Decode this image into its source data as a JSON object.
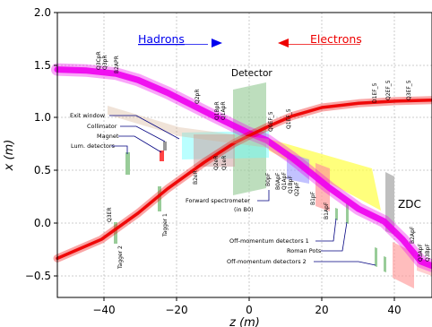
{
  "axes": {
    "xlabel": "z (m)",
    "ylabel": "x (m)",
    "xlim": [
      -52,
      50
    ],
    "ylim": [
      -0.7,
      2.0
    ],
    "xticks": [
      "−40",
      "−20",
      "0",
      "20",
      "40"
    ],
    "yticks": [
      "−0.5",
      "0.0",
      "0.5",
      "1.0",
      "1.5",
      "2.0"
    ],
    "grid": true
  },
  "legend": {
    "hadrons": "Hadrons",
    "electrons": "Electrons",
    "hadrons_color": "#0000ee",
    "electrons_color": "#ee0000"
  },
  "labels": {
    "detector": "Detector",
    "zdc": "ZDC"
  },
  "callouts": {
    "exit_window": "Exit window",
    "collimator": "Collimator",
    "magnet": "Magnet",
    "lum_detectors": "Lum. detectors",
    "forward_spectrometer_1": "Forward spectrometer",
    "forward_spectrometer_2": "(in B0)",
    "off_momentum_1": "Off-momentum detectors 1",
    "roman_pots": "Roman Pots",
    "off_momentum_2": "Off-momentum detectors 2"
  },
  "magnets": {
    "q3cpr": "Q3CpR",
    "q3pr": "Q3pR",
    "b2apr": "B2APR",
    "q2pr": "Q2pR",
    "q1bpr": "Q1BpR",
    "q1apr": "Q1ApR",
    "q0ef": "Q0EF_5",
    "q1ef": "Q1EF_5",
    "d1ef": "D1EF_5",
    "q2ef": "Q2EF_5",
    "q3ef": "Q3EF_5",
    "b2er": "B2eR",
    "q2er": "Q2eR",
    "q1er": "Q1eR",
    "b0pf": "B0pF",
    "b0apf": "B0ApF",
    "q1apf": "Q1ApF",
    "q1bpf": "Q1BpF",
    "q2pf": "Q2pF",
    "b1pf": "B1pF",
    "b1apf": "B1ApF",
    "b2apf": "B2ApF",
    "q3apf": "Q3ApF",
    "q3bpf": "Q3BpF",
    "q3er": "Q3ER",
    "tagger1": "Tagger 1",
    "tagger2": "Tagger 2"
  },
  "beamlines": {
    "hadron_color": "#ee00ee",
    "electron_color": "#ee0000",
    "hadron_out": [
      [
        -52,
        1.46
      ],
      [
        -44,
        1.45
      ],
      [
        -36,
        1.42
      ],
      [
        -30,
        1.36
      ],
      [
        -22,
        1.24
      ],
      [
        -10,
        1.03
      ],
      [
        0,
        0.86
      ],
      [
        5,
        0.79
      ],
      [
        12,
        0.62
      ],
      [
        22,
        0.34
      ],
      [
        30,
        0.14
      ],
      [
        37,
        0.02
      ],
      [
        42,
        -0.15
      ],
      [
        47,
        -0.36
      ],
      [
        50,
        -0.4
      ]
    ],
    "electron_in": [
      [
        -52,
        -0.33
      ],
      [
        -40,
        -0.15
      ],
      [
        -30,
        0.1
      ],
      [
        -22,
        0.33
      ],
      [
        -12,
        0.58
      ],
      [
        -4,
        0.76
      ],
      [
        0,
        0.83
      ],
      [
        6,
        0.93
      ],
      [
        12,
        1.02
      ],
      [
        20,
        1.1
      ],
      [
        30,
        1.14
      ],
      [
        40,
        1.16
      ],
      [
        50,
        1.17
      ]
    ]
  }
}
